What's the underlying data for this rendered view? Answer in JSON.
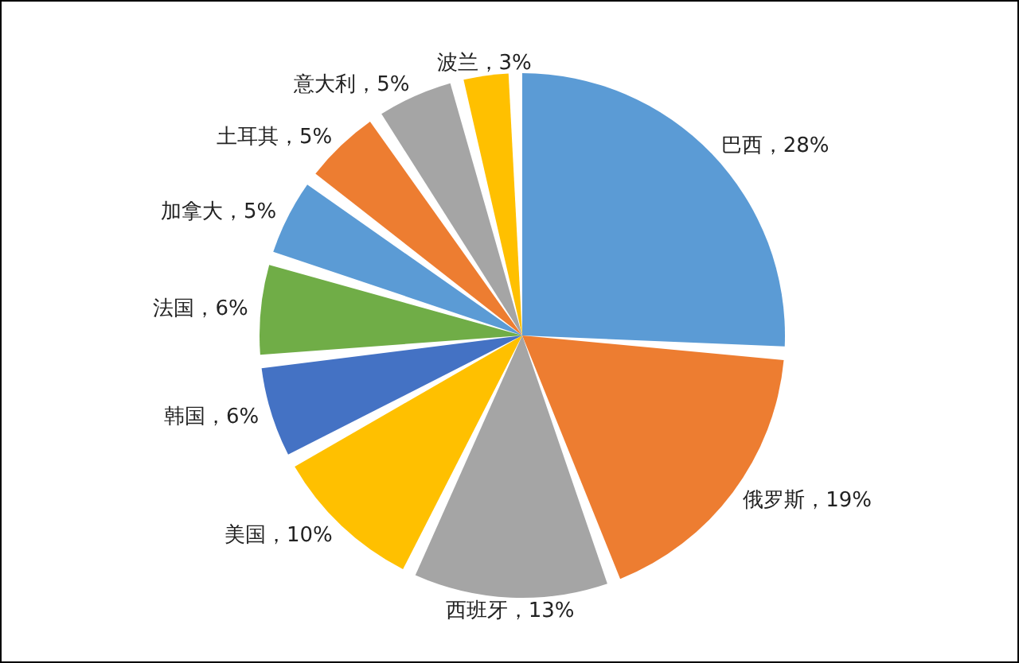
{
  "chart_data": {
    "type": "pie",
    "categories": [
      "巴西",
      "俄罗斯",
      "西班牙",
      "美国",
      "韩国",
      "法国",
      "加拿大",
      "土耳其",
      "意大利",
      "波兰"
    ],
    "values": [
      28,
      19,
      13,
      10,
      6,
      6,
      5,
      5,
      5,
      3
    ],
    "colors": [
      "#5b9bd5",
      "#ed7d31",
      "#a5a5a5",
      "#ffc000",
      "#4472c4",
      "#70ad47",
      "#5b9bd5",
      "#ed7d31",
      "#a5a5a5",
      "#ffc000"
    ],
    "value_labels": [
      "，28%",
      "，19%",
      "，13%",
      "，10%",
      "，6%",
      "，6%",
      "，5%",
      "，5%",
      "，5%",
      "，3%"
    ]
  }
}
